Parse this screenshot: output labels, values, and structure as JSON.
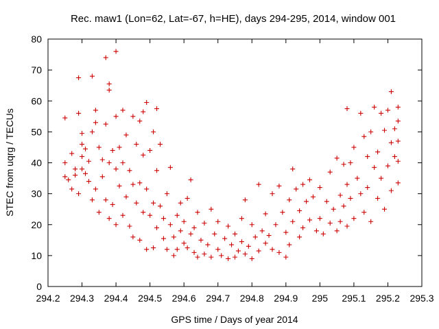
{
  "chart_data": {
    "type": "scatter",
    "title": "Rec. maw1 (Lon=62, Lat=-67, h=HE), days 294-295, 2014, window 001",
    "xlabel": "GPS time / Days of year 2014",
    "ylabel": "STEC from uqrg / TECUs",
    "xlim": [
      294.2,
      295.3
    ],
    "ylim": [
      0,
      80
    ],
    "xticks": [
      294.2,
      294.3,
      294.4,
      294.5,
      294.6,
      294.7,
      294.8,
      294.9,
      295,
      295.1,
      295.2,
      295.3
    ],
    "xtick_labels": [
      "294.2",
      "294.3",
      "294.4",
      "294.5",
      "294.6",
      "294.7",
      "294.8",
      "294.9",
      "295",
      "295.1",
      "295.2",
      "295.3"
    ],
    "yticks": [
      0,
      10,
      20,
      30,
      40,
      50,
      60,
      70,
      80
    ],
    "ytick_labels": [
      "0",
      "10",
      "20",
      "30",
      "40",
      "50",
      "60",
      "70",
      "80"
    ],
    "grid": false,
    "marker": "plus",
    "color": "#cc0000",
    "series": [
      {
        "points": [
          [
            294.25,
            54.5
          ],
          [
            294.25,
            40.0
          ],
          [
            294.25,
            35.5
          ],
          [
            294.26,
            34.5
          ],
          [
            294.27,
            43.0
          ],
          [
            294.27,
            31.5
          ],
          [
            294.28,
            38.0
          ],
          [
            294.28,
            36.0
          ],
          [
            294.29,
            67.5
          ],
          [
            294.29,
            56.0
          ],
          [
            294.29,
            30.0
          ],
          [
            294.3,
            49.5
          ],
          [
            294.3,
            46.0
          ],
          [
            294.3,
            42.0
          ],
          [
            294.3,
            38.0
          ],
          [
            294.31,
            44.5
          ],
          [
            294.31,
            36.5
          ],
          [
            294.32,
            40.5
          ],
          [
            294.32,
            34.0
          ],
          [
            294.33,
            68.0
          ],
          [
            294.33,
            50.0
          ],
          [
            294.33,
            28.0
          ],
          [
            294.34,
            57.0
          ],
          [
            294.34,
            53.0
          ],
          [
            294.34,
            31.5
          ],
          [
            294.35,
            45.0
          ],
          [
            294.35,
            24.0
          ],
          [
            294.36,
            41.0
          ],
          [
            294.36,
            35.5
          ],
          [
            294.37,
            74.0
          ],
          [
            294.37,
            52.5
          ],
          [
            294.37,
            28.0
          ],
          [
            294.38,
            65.5
          ],
          [
            294.38,
            63.5
          ],
          [
            294.38,
            40.0
          ],
          [
            294.38,
            22.0
          ],
          [
            294.39,
            44.0
          ],
          [
            294.39,
            26.5
          ],
          [
            294.4,
            76.0
          ],
          [
            294.4,
            55.0
          ],
          [
            294.4,
            38.0
          ],
          [
            294.4,
            20.0
          ],
          [
            294.41,
            45.0
          ],
          [
            294.41,
            32.5
          ],
          [
            294.42,
            57.0
          ],
          [
            294.42,
            40.0
          ],
          [
            294.42,
            23.0
          ],
          [
            294.43,
            49.0
          ],
          [
            294.43,
            29.0
          ],
          [
            294.44,
            37.5
          ],
          [
            294.44,
            19.5
          ],
          [
            294.45,
            55.0
          ],
          [
            294.45,
            33.0
          ],
          [
            294.45,
            16.0
          ],
          [
            294.46,
            46.0
          ],
          [
            294.46,
            27.0
          ],
          [
            294.47,
            53.5
          ],
          [
            294.47,
            33.5
          ],
          [
            294.47,
            15.0
          ],
          [
            294.48,
            56.5
          ],
          [
            294.48,
            42.5
          ],
          [
            294.48,
            24.0
          ],
          [
            294.49,
            59.5
          ],
          [
            294.49,
            31.5
          ],
          [
            294.49,
            12.0
          ],
          [
            294.5,
            44.0
          ],
          [
            294.5,
            23.0
          ],
          [
            294.51,
            50.0
          ],
          [
            294.51,
            27.0
          ],
          [
            294.51,
            12.5
          ],
          [
            294.52,
            57.5
          ],
          [
            294.52,
            37.5
          ],
          [
            294.52,
            19.0
          ],
          [
            294.53,
            46.0
          ],
          [
            294.53,
            26.0
          ],
          [
            294.54,
            22.0
          ],
          [
            294.54,
            15.5
          ],
          [
            294.55,
            30.0
          ],
          [
            294.55,
            12.0
          ],
          [
            294.56,
            38.5
          ],
          [
            294.56,
            20.0
          ],
          [
            294.57,
            16.0
          ],
          [
            294.57,
            10.0
          ],
          [
            294.58,
            23.0
          ],
          [
            294.58,
            12.0
          ],
          [
            294.59,
            27.0
          ],
          [
            294.59,
            18.0
          ],
          [
            294.6,
            14.0
          ],
          [
            294.6,
            21.0
          ],
          [
            294.61,
            28.5
          ],
          [
            294.61,
            12.5
          ],
          [
            294.62,
            34.5
          ],
          [
            294.62,
            17.0
          ],
          [
            294.63,
            11.0
          ],
          [
            294.63,
            19.0
          ],
          [
            294.64,
            24.0
          ],
          [
            294.64,
            9.5
          ],
          [
            294.65,
            15.0
          ],
          [
            294.66,
            20.5
          ],
          [
            294.66,
            10.5
          ],
          [
            294.67,
            13.5
          ],
          [
            294.68,
            25.0
          ],
          [
            294.68,
            9.5
          ],
          [
            294.69,
            17.0
          ],
          [
            294.7,
            12.0
          ],
          [
            294.7,
            21.0
          ],
          [
            294.71,
            10.0
          ],
          [
            294.72,
            15.5
          ],
          [
            294.73,
            19.5
          ],
          [
            294.73,
            9.0
          ],
          [
            294.74,
            13.5
          ],
          [
            294.75,
            17.0
          ],
          [
            294.75,
            9.5
          ],
          [
            294.76,
            11.5
          ],
          [
            294.77,
            22.0
          ],
          [
            294.77,
            14.5
          ],
          [
            294.78,
            28.0
          ],
          [
            294.78,
            10.5
          ],
          [
            294.79,
            13.0
          ],
          [
            294.8,
            20.0
          ],
          [
            294.8,
            9.0
          ],
          [
            294.81,
            16.0
          ],
          [
            294.82,
            33.0
          ],
          [
            294.82,
            11.5
          ],
          [
            294.83,
            18.0
          ],
          [
            294.84,
            23.5
          ],
          [
            294.84,
            14.0
          ],
          [
            294.85,
            16.5
          ],
          [
            294.86,
            30.0
          ],
          [
            294.86,
            12.0
          ],
          [
            294.87,
            20.0
          ],
          [
            294.88,
            32.5
          ],
          [
            294.88,
            11.0
          ],
          [
            294.89,
            24.0
          ],
          [
            294.9,
            17.5
          ],
          [
            294.9,
            9.5
          ],
          [
            294.91,
            28.0
          ],
          [
            294.91,
            13.5
          ],
          [
            294.92,
            38.0
          ],
          [
            294.92,
            21.0
          ],
          [
            294.93,
            31.5
          ],
          [
            294.94,
            16.0
          ],
          [
            294.94,
            24.5
          ],
          [
            294.95,
            33.0
          ],
          [
            294.95,
            19.0
          ],
          [
            294.96,
            27.5
          ],
          [
            294.97,
            34.5
          ],
          [
            294.97,
            21.5
          ],
          [
            294.98,
            29.0
          ],
          [
            294.99,
            18.0
          ],
          [
            295.0,
            32.0
          ],
          [
            295.0,
            22.0
          ],
          [
            295.01,
            17.0
          ],
          [
            295.02,
            27.5
          ],
          [
            295.03,
            20.5
          ],
          [
            295.03,
            37.0
          ],
          [
            295.04,
            25.0
          ],
          [
            295.05,
            18.0
          ],
          [
            295.05,
            41.5
          ],
          [
            295.06,
            29.5
          ],
          [
            295.06,
            21.0
          ],
          [
            295.07,
            39.5
          ],
          [
            295.07,
            26.0
          ],
          [
            295.08,
            57.5
          ],
          [
            295.08,
            33.0
          ],
          [
            295.08,
            19.5
          ],
          [
            295.09,
            40.0
          ],
          [
            295.09,
            28.5
          ],
          [
            295.1,
            45.0
          ],
          [
            295.1,
            22.0
          ],
          [
            295.11,
            35.0
          ],
          [
            295.12,
            56.0
          ],
          [
            295.12,
            30.0
          ],
          [
            295.13,
            48.5
          ],
          [
            295.13,
            24.0
          ],
          [
            295.14,
            42.0
          ],
          [
            295.14,
            32.0
          ],
          [
            295.15,
            50.0
          ],
          [
            295.15,
            21.0
          ],
          [
            295.16,
            58.0
          ],
          [
            295.16,
            38.5
          ],
          [
            295.17,
            43.5
          ],
          [
            295.17,
            28.5
          ],
          [
            295.18,
            56.0
          ],
          [
            295.18,
            35.0
          ],
          [
            295.19,
            50.5
          ],
          [
            295.19,
            25.0
          ],
          [
            295.2,
            57.0
          ],
          [
            295.2,
            39.0
          ],
          [
            295.21,
            63.0
          ],
          [
            295.21,
            46.5
          ],
          [
            295.21,
            31.0
          ],
          [
            295.22,
            42.0
          ],
          [
            295.22,
            51.0
          ],
          [
            295.23,
            58.0
          ],
          [
            295.23,
            53.5
          ],
          [
            295.23,
            47.0
          ],
          [
            295.23,
            40.5
          ],
          [
            295.23,
            33.5
          ]
        ]
      }
    ]
  }
}
